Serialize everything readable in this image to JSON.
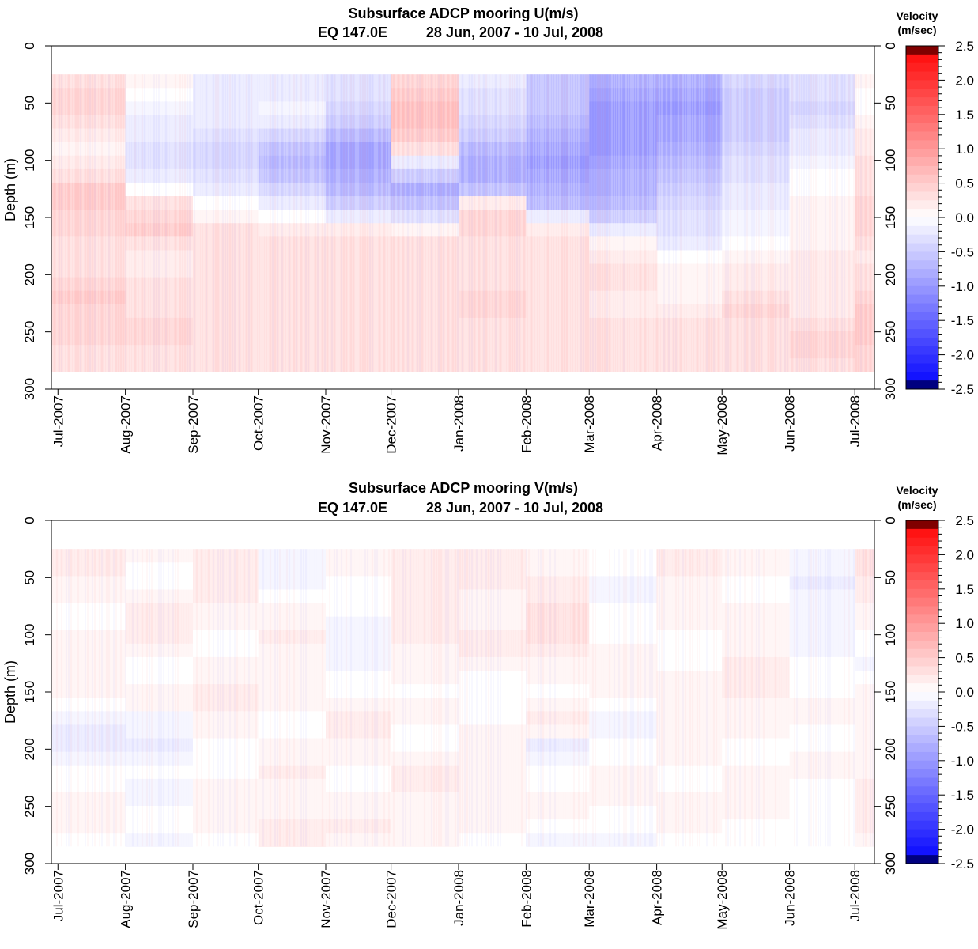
{
  "chart_data": [
    {
      "type": "heatmap",
      "title": "Subsurface ADCP mooring U(m/s)",
      "subtitle_location": "EQ 147.0E",
      "subtitle_dates": "28 Jun, 2007 - 10 Jul, 2008",
      "ylabel": "Depth (m)",
      "ylim": [
        0,
        300
      ],
      "y_ticks": [
        "0",
        "50",
        "100",
        "150",
        "200",
        "250",
        "300"
      ],
      "x_ticks": [
        "Jul-2007",
        "Aug-2007",
        "Sep-2007",
        "Oct-2007",
        "Nov-2007",
        "Dec-2007",
        "Jan-2008",
        "Feb-2008",
        "Mar-2008",
        "Apr-2008",
        "May-2008",
        "Jun-2008",
        "Jul-2008"
      ],
      "x_range": [
        "2007-06-28",
        "2008-07-10"
      ],
      "data_depth_range": [
        25,
        285
      ],
      "depths": [
        30,
        42,
        54,
        66,
        78,
        90,
        102,
        114,
        126,
        138,
        150,
        162,
        174,
        186,
        198,
        210,
        222,
        234,
        246,
        258,
        270,
        282
      ],
      "months": [
        "Jul-2007",
        "Aug-2007",
        "Sep-2007",
        "Oct-2007",
        "Nov-2007",
        "Dec-2007",
        "Jan-2008",
        "Feb-2008",
        "Mar-2008",
        "Apr-2008",
        "May-2008",
        "Jun-2008",
        "Jul-2008"
      ],
      "values": [
        [
          0.3,
          0.1,
          -0.2,
          -0.2,
          -0.3,
          0.4,
          -0.2,
          -0.6,
          -0.8,
          -0.8,
          -0.4,
          -0.3,
          0.1
        ],
        [
          0.4,
          0.0,
          -0.2,
          -0.2,
          -0.3,
          0.5,
          -0.3,
          -0.6,
          -0.9,
          -0.9,
          -0.5,
          -0.3,
          0.0
        ],
        [
          0.4,
          -0.1,
          -0.2,
          -0.1,
          -0.4,
          0.6,
          -0.3,
          -0.6,
          -1.0,
          -1.0,
          -0.5,
          -0.4,
          0.0
        ],
        [
          0.3,
          -0.2,
          -0.2,
          -0.2,
          -0.5,
          0.6,
          -0.4,
          -0.7,
          -1.0,
          -0.9,
          -0.5,
          -0.3,
          0.1
        ],
        [
          0.2,
          -0.2,
          -0.3,
          -0.4,
          -0.7,
          0.5,
          -0.5,
          -0.8,
          -1.0,
          -0.9,
          -0.5,
          -0.2,
          0.2
        ],
        [
          0.1,
          -0.3,
          -0.4,
          -0.6,
          -0.9,
          0.3,
          -0.7,
          -0.9,
          -1.0,
          -0.8,
          -0.4,
          -0.2,
          0.2
        ],
        [
          0.2,
          -0.3,
          -0.4,
          -0.7,
          -0.9,
          -0.2,
          -0.8,
          -1.0,
          -0.9,
          -0.7,
          -0.3,
          -0.1,
          0.3
        ],
        [
          0.3,
          -0.2,
          -0.3,
          -0.6,
          -0.8,
          -0.5,
          -0.8,
          -0.9,
          -0.8,
          -0.6,
          -0.3,
          0.0,
          0.3
        ],
        [
          0.5,
          0.0,
          -0.2,
          -0.4,
          -0.7,
          -0.8,
          -0.6,
          -0.8,
          -0.8,
          -0.5,
          -0.2,
          0.0,
          0.3
        ],
        [
          0.5,
          0.3,
          0.0,
          -0.2,
          -0.5,
          -0.6,
          0.2,
          -0.7,
          -0.7,
          -0.4,
          -0.2,
          0.1,
          0.4
        ],
        [
          0.4,
          0.4,
          0.1,
          0.0,
          -0.2,
          -0.3,
          0.4,
          -0.2,
          -0.5,
          -0.3,
          -0.1,
          0.1,
          0.4
        ],
        [
          0.4,
          0.5,
          0.3,
          0.2,
          0.2,
          0.1,
          0.4,
          0.2,
          -0.2,
          -0.3,
          -0.1,
          0.1,
          0.4
        ],
        [
          0.3,
          0.3,
          0.3,
          0.3,
          0.3,
          0.3,
          0.3,
          0.3,
          0.1,
          -0.2,
          0.0,
          0.1,
          0.3
        ],
        [
          0.3,
          0.2,
          0.3,
          0.3,
          0.3,
          0.3,
          0.3,
          0.3,
          0.2,
          0.0,
          0.1,
          0.2,
          0.2
        ],
        [
          0.3,
          0.2,
          0.3,
          0.3,
          0.3,
          0.3,
          0.3,
          0.3,
          0.3,
          0.1,
          0.2,
          0.2,
          0.3
        ],
        [
          0.4,
          0.3,
          0.3,
          0.3,
          0.3,
          0.3,
          0.3,
          0.3,
          0.3,
          0.1,
          0.2,
          0.2,
          0.3
        ],
        [
          0.5,
          0.3,
          0.3,
          0.3,
          0.3,
          0.3,
          0.4,
          0.3,
          0.2,
          0.1,
          0.3,
          0.2,
          0.4
        ],
        [
          0.4,
          0.3,
          0.3,
          0.3,
          0.3,
          0.3,
          0.4,
          0.3,
          0.2,
          0.2,
          0.4,
          0.2,
          0.5
        ],
        [
          0.4,
          0.4,
          0.3,
          0.3,
          0.3,
          0.3,
          0.3,
          0.3,
          0.3,
          0.3,
          0.3,
          0.3,
          0.5
        ],
        [
          0.4,
          0.4,
          0.3,
          0.3,
          0.3,
          0.3,
          0.3,
          0.3,
          0.3,
          0.3,
          0.3,
          0.4,
          0.5
        ],
        [
          0.3,
          0.3,
          0.3,
          0.3,
          0.3,
          0.3,
          0.3,
          0.3,
          0.3,
          0.3,
          0.3,
          0.4,
          0.4
        ],
        [
          0.3,
          0.3,
          0.3,
          0.3,
          0.3,
          0.3,
          0.3,
          0.3,
          0.3,
          0.3,
          0.3,
          0.3,
          0.4
        ]
      ],
      "colorbar": {
        "title_line1": "Velocity",
        "title_line2": "(m/sec)",
        "range": [
          -2.5,
          2.5
        ],
        "tick_labels": [
          "2.5",
          "2.0",
          "1.5",
          "1.0",
          "0.5",
          "0.0",
          "-0.5",
          "-1.0",
          "-1.5",
          "-2.0",
          "-2.5"
        ],
        "negative_color": "#0000ff",
        "zero_color": "#ffffff",
        "positive_color": "#ff0000",
        "low_extreme_color": "#000080",
        "high_extreme_color": "#800000"
      }
    },
    {
      "type": "heatmap",
      "title": "Subsurface ADCP mooring V(m/s)",
      "subtitle_location": "EQ 147.0E",
      "subtitle_dates": "28 Jun, 2007 - 10 Jul, 2008",
      "ylabel": "Depth (m)",
      "ylim": [
        0,
        300
      ],
      "y_ticks": [
        "0",
        "50",
        "100",
        "150",
        "200",
        "250",
        "300"
      ],
      "x_ticks": [
        "Jul-2007",
        "Aug-2007",
        "Sep-2007",
        "Oct-2007",
        "Nov-2007",
        "Dec-2007",
        "Jan-2008",
        "Feb-2008",
        "Mar-2008",
        "Apr-2008",
        "May-2008",
        "Jun-2008",
        "Jul-2008"
      ],
      "x_range": [
        "2007-06-28",
        "2008-07-10"
      ],
      "data_depth_range": [
        25,
        285
      ],
      "depths": [
        30,
        42,
        54,
        66,
        78,
        90,
        102,
        114,
        126,
        138,
        150,
        162,
        174,
        186,
        198,
        210,
        222,
        234,
        246,
        258,
        270,
        282
      ],
      "months": [
        "Jul-2007",
        "Aug-2007",
        "Sep-2007",
        "Oct-2007",
        "Nov-2007",
        "Dec-2007",
        "Jan-2008",
        "Feb-2008",
        "Mar-2008",
        "Apr-2008",
        "May-2008",
        "Jun-2008",
        "Jul-2008"
      ],
      "values": [
        [
          0.2,
          0.1,
          0.2,
          -0.1,
          0.1,
          0.2,
          0.2,
          0.1,
          0.0,
          0.2,
          0.1,
          -0.1,
          0.3
        ],
        [
          0.2,
          0.0,
          0.2,
          -0.1,
          0.1,
          0.2,
          0.2,
          0.1,
          0.0,
          0.2,
          0.1,
          -0.1,
          0.3
        ],
        [
          0.1,
          0.0,
          0.2,
          -0.1,
          0.0,
          0.2,
          0.2,
          0.2,
          -0.1,
          0.1,
          0.0,
          -0.2,
          0.2
        ],
        [
          0.1,
          0.1,
          0.2,
          0.0,
          0.0,
          0.2,
          0.1,
          0.2,
          -0.1,
          0.1,
          0.0,
          -0.1,
          0.2
        ],
        [
          0.0,
          0.2,
          0.1,
          0.1,
          0.0,
          0.2,
          0.1,
          0.3,
          0.0,
          0.1,
          0.1,
          -0.1,
          0.1
        ],
        [
          0.0,
          0.2,
          0.1,
          0.1,
          -0.1,
          0.2,
          0.1,
          0.3,
          0.0,
          0.1,
          0.1,
          -0.1,
          0.1
        ],
        [
          0.1,
          0.2,
          0.0,
          0.2,
          -0.1,
          0.2,
          0.2,
          0.3,
          0.0,
          0.0,
          0.1,
          -0.1,
          0.0
        ],
        [
          0.1,
          0.1,
          0.0,
          0.1,
          -0.1,
          0.1,
          0.2,
          0.2,
          0.1,
          0.0,
          0.1,
          -0.1,
          0.0
        ],
        [
          0.1,
          0.0,
          0.1,
          0.1,
          -0.1,
          0.1,
          0.1,
          0.1,
          0.1,
          0.0,
          0.2,
          0.0,
          -0.1
        ],
        [
          0.1,
          0.0,
          0.1,
          0.1,
          0.0,
          0.1,
          0.0,
          0.1,
          0.1,
          0.1,
          0.2,
          0.0,
          0.0
        ],
        [
          0.1,
          0.1,
          0.2,
          0.1,
          0.0,
          0.0,
          0.0,
          0.0,
          0.1,
          0.1,
          0.2,
          0.0,
          0.1
        ],
        [
          0.0,
          0.1,
          0.2,
          0.1,
          0.1,
          0.1,
          0.0,
          0.1,
          0.0,
          0.1,
          0.1,
          0.1,
          0.1
        ],
        [
          -0.1,
          -0.1,
          0.1,
          0.0,
          0.2,
          0.1,
          0.0,
          0.2,
          -0.1,
          0.1,
          0.1,
          0.1,
          0.1
        ],
        [
          -0.2,
          -0.1,
          0.1,
          0.0,
          0.2,
          0.0,
          0.1,
          0.1,
          -0.1,
          0.1,
          0.1,
          0.0,
          0.1
        ],
        [
          -0.2,
          -0.2,
          0.0,
          0.1,
          0.1,
          0.0,
          0.1,
          -0.2,
          0.0,
          0.1,
          0.0,
          0.0,
          0.1
        ],
        [
          -0.1,
          -0.1,
          0.0,
          0.1,
          0.1,
          0.1,
          0.1,
          -0.1,
          0.0,
          0.1,
          0.0,
          0.1,
          0.1
        ],
        [
          0.0,
          0.0,
          0.0,
          0.2,
          0.0,
          0.2,
          0.1,
          0.0,
          0.1,
          0.0,
          0.1,
          0.1,
          0.1
        ],
        [
          0.0,
          -0.1,
          0.1,
          0.1,
          0.0,
          0.2,
          0.1,
          0.0,
          0.1,
          0.0,
          0.1,
          0.0,
          0.2
        ],
        [
          0.1,
          -0.1,
          0.1,
          0.1,
          0.1,
          0.1,
          0.1,
          0.1,
          0.1,
          0.1,
          0.1,
          0.0,
          0.2
        ],
        [
          0.1,
          0.0,
          0.1,
          0.1,
          0.1,
          0.1,
          0.1,
          0.1,
          0.0,
          0.1,
          0.1,
          0.0,
          0.2
        ],
        [
          0.1,
          0.0,
          0.1,
          0.2,
          0.2,
          0.1,
          0.1,
          0.0,
          0.0,
          0.1,
          0.0,
          0.0,
          0.2
        ],
        [
          0.0,
          -0.1,
          0.0,
          0.2,
          0.1,
          0.1,
          0.0,
          -0.1,
          -0.1,
          0.0,
          0.0,
          0.0,
          0.1
        ]
      ],
      "colorbar": {
        "title_line1": "Velocity",
        "title_line2": "(m/sec)",
        "range": [
          -2.5,
          2.5
        ],
        "tick_labels": [
          "2.5",
          "2.0",
          "1.5",
          "1.0",
          "0.5",
          "0.0",
          "-0.5",
          "-1.0",
          "-1.5",
          "-2.0",
          "-2.5"
        ],
        "negative_color": "#0000ff",
        "zero_color": "#ffffff",
        "positive_color": "#ff0000",
        "low_extreme_color": "#000080",
        "high_extreme_color": "#800000"
      }
    }
  ]
}
